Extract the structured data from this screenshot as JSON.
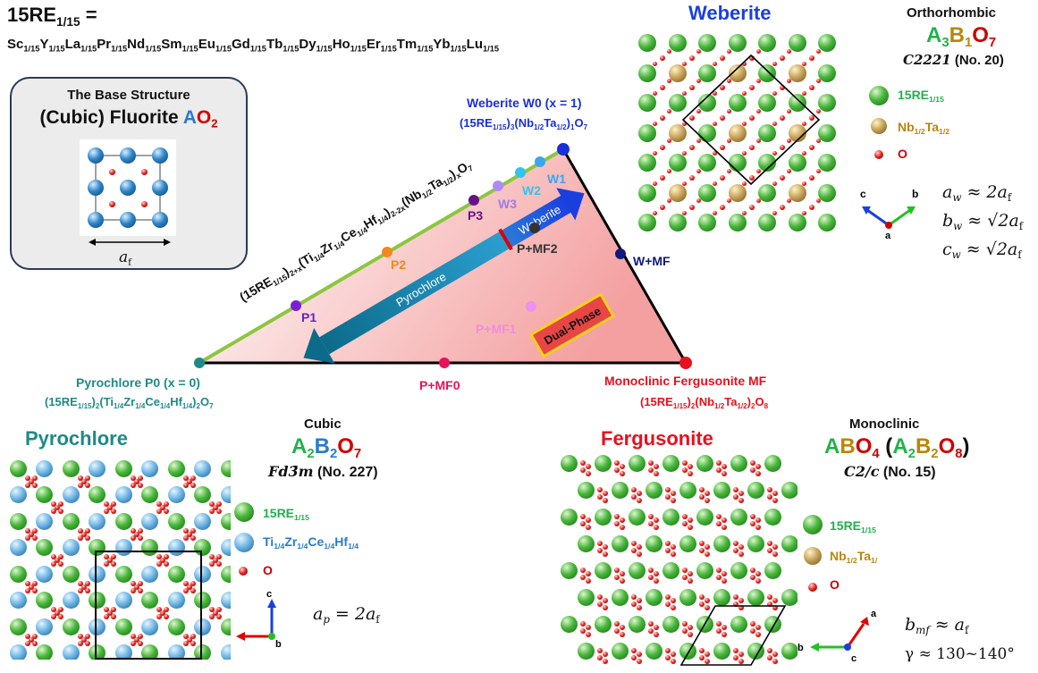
{
  "top_left": {
    "re_def_title": "15RE",
    "re_def_sub": "1/15",
    "re_def_eq": " =",
    "elements": [
      "Sc",
      "Y",
      "La",
      "Pr",
      "Nd",
      "Sm",
      "Eu",
      "Gd",
      "Tb",
      "Dy",
      "Ho",
      "Er",
      "Tm",
      "Yb",
      "Lu"
    ],
    "element_sub": "1/15"
  },
  "base": {
    "title": "The Base Structure",
    "name_prefix": "(Cubic) Fluorite ",
    "name_A": "A",
    "name_O": "O",
    "name_O_sub": "2",
    "lattice_label": "a",
    "lattice_sub": "f"
  },
  "weberite": {
    "title": "Weberite",
    "system": "Orthorhombic",
    "formula_A": "A",
    "formula_A_sub": "3",
    "formula_B": "B",
    "formula_B_sub": "1",
    "formula_O": "O",
    "formula_O_sub": "7",
    "space_group": "C2221",
    "space_group_no": " (No. 20)",
    "legend": [
      {
        "main": "15RE",
        "sub": "1/15"
      },
      {
        "main": "Nb",
        "sub": "1/2",
        "main2": "Ta",
        "sub2": "1/2"
      },
      {
        "main": "O"
      }
    ],
    "axes": {
      "c": "c",
      "b": "b",
      "a": "a"
    },
    "params": [
      "a_w ≈ 2a_f",
      "b_w ≈ √2a_f",
      "c_w ≈ √2a_f"
    ]
  },
  "pyrochlore": {
    "title": "Pyrochlore",
    "system": "Cubic",
    "formula_A": "A",
    "formula_A_sub": "2",
    "formula_B": "B",
    "formula_B_sub": "2",
    "formula_O": "O",
    "formula_O_sub": "7",
    "space_group": "Fd3̄m",
    "space_group_no": " (No. 227)",
    "legend": [
      {
        "main": "15RE",
        "sub": "1/15"
      },
      {
        "text": "Ti1/4Zr1/4Ce1/4Hf1/4"
      },
      {
        "main": "O"
      }
    ],
    "axes": {
      "c": "c",
      "a": "a",
      "b": "b"
    },
    "param": "a_p = 2a_f"
  },
  "fergusonite": {
    "title": "Fergusonite",
    "system": "Monoclinic",
    "formula_left": "ABO",
    "formula_left_sub": "4",
    "formula_right": "(A2B2O8)",
    "space_group": "C2/c",
    "space_group_no": " (No. 15)",
    "legend": [
      {
        "main": "15RE",
        "sub": "1/15"
      },
      {
        "main": "Nb",
        "sub": "1/2",
        "main2": "Ta",
        "sub2": "1/"
      },
      {
        "main": "O"
      }
    ],
    "axes": {
      "a": "a",
      "b": "b",
      "c": "c"
    },
    "params": [
      "b_mf ≈ a_f",
      "γ ≈ 130~140°"
    ]
  },
  "phase_diagram": {
    "w0_title": "Weberite W0 (x = 1)",
    "w0_formula": "(15RE1/15)3(Nb1/2Ta1/2)1O7",
    "p0_title": "Pyrochlore P0 (x = 0)",
    "p0_formula": "(15RE1/15)2(Ti1/4Zr1/4Ce1/4Hf1/4)2O7",
    "mf_title": "Monoclinic Fergusonite MF",
    "mf_formula": "(15RE1/15)2(Nb1/2Ta1/2)2O8",
    "edge_formula": "(15RE1/15)2+x(Ti1/4Zr1/4Ce1/4Hf1/4)2-2x(Nb1/2Ta1/2)xO7",
    "points": [
      "P1",
      "P2",
      "P3",
      "W3",
      "W2",
      "W1",
      "W+MF",
      "P+MF2",
      "P+MF1",
      "P+MF0"
    ],
    "arrow_pyrochlore": "Pyrochlore",
    "arrow_weberite": "Weberite",
    "dual_phase": "Dual-Phase"
  }
}
